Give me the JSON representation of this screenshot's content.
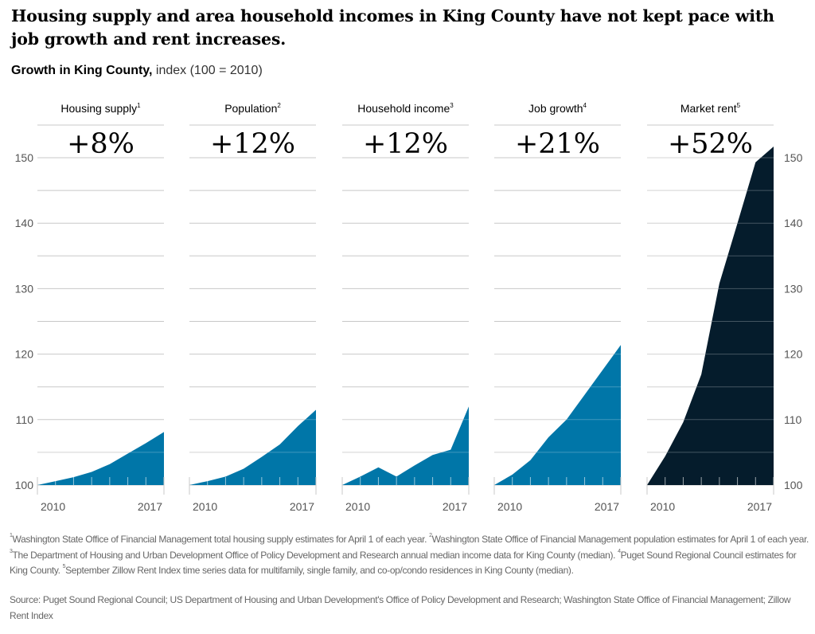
{
  "title": "Housing supply and area household incomes in King County have not kept pace with job growth and rent increases.",
  "subtitle": {
    "bold": "Growth in King County,",
    "light": "index (100 = 2010)"
  },
  "chart_data": {
    "type": "area",
    "layout": "small-multiples",
    "x": [
      2010,
      2011,
      2012,
      2013,
      2014,
      2015,
      2016,
      2017
    ],
    "x_tick_labels": [
      "2010",
      "2017"
    ],
    "ylim": [
      100,
      150
    ],
    "y_ticks": [
      100,
      110,
      120,
      130,
      140,
      150
    ],
    "y_tick_labels": [
      "100",
      "110",
      "120",
      "130",
      "140",
      "150"
    ],
    "gridline_step": 5,
    "grid": true,
    "ylabel": "index (100 = 2010)",
    "series": [
      {
        "name": "Housing supply",
        "footnote": "1",
        "change_label": "+8%",
        "color": "#0076A8",
        "values": [
          100,
          100.6,
          101.2,
          102.0,
          103.2,
          104.8,
          106.4,
          108.1
        ]
      },
      {
        "name": "Population",
        "footnote": "2",
        "change_label": "+12%",
        "color": "#0076A8",
        "values": [
          100,
          100.6,
          101.3,
          102.5,
          104.3,
          106.2,
          109.0,
          111.5
        ]
      },
      {
        "name": "Household income",
        "footnote": "3",
        "change_label": "+12%",
        "color": "#0076A8",
        "values": [
          100,
          101.3,
          102.7,
          101.3,
          103.0,
          104.6,
          105.4,
          112.0
        ]
      },
      {
        "name": "Job growth",
        "footnote": "4",
        "change_label": "+21%",
        "color": "#0076A8",
        "values": [
          100,
          101.6,
          103.8,
          107.3,
          110.0,
          113.8,
          117.6,
          121.4
        ]
      },
      {
        "name": "Market rent",
        "footnote": "5",
        "change_label": "+52%",
        "color": "#051C2C",
        "values": [
          100,
          104.4,
          109.6,
          116.9,
          130.8,
          140.0,
          149.3,
          151.7
        ]
      }
    ]
  },
  "footnotes": [
    {
      "num": "1",
      "text": "Washington State Office of Financial Management total housing supply estimates for April 1 of each year."
    },
    {
      "num": "2",
      "text": "Washington State Office of Financial Management population estimates for April 1 of each year."
    },
    {
      "num": "3",
      "text": "The Department of Housing and Urban Development Office of Policy Development and Research annual median income data for King County (median)."
    },
    {
      "num": "4",
      "text": "Puget Sound Regional Council estimates for King County."
    },
    {
      "num": "5",
      "text": "September Zillow Rent Index time series data for multifamily, single family, and co-op/condo residences in King County (median)."
    }
  ],
  "source": "Source: Puget Sound Regional Council; US Department of Housing and Urban Development's Office of Policy Development and Research; Washington State Office of Financial Management; Zillow Rent Index",
  "colors": {
    "grid": "#C8C8C8",
    "axis_text": "#555555",
    "light_blue": "#0076A8",
    "navy": "#051C2C"
  }
}
